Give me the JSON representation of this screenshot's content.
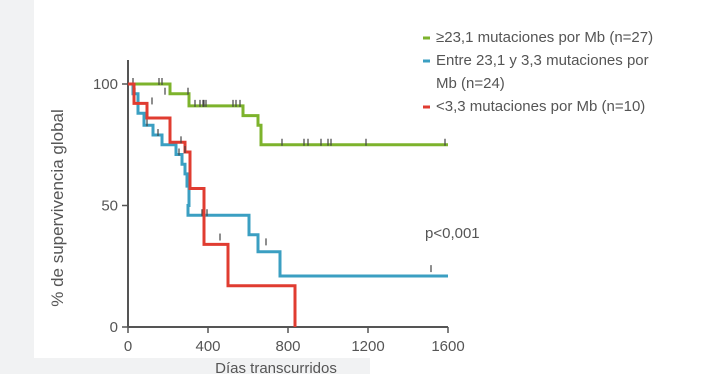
{
  "chart_data": {
    "type": "line",
    "step": true,
    "title": "",
    "xlabel": "Días transcurridos",
    "ylabel": "% de supervivencia global",
    "xlim": [
      0,
      1600
    ],
    "ylim": [
      0,
      100
    ],
    "xticks": [
      "0",
      "400",
      "800",
      "1200",
      "1600"
    ],
    "yticks": [
      "0",
      "50",
      "100"
    ],
    "legend_position": "top-right",
    "series": [
      {
        "name": "≥23,1 mutaciones por Mb (n=27)",
        "color": "#7db32c",
        "points": [
          [
            0,
            100
          ],
          [
            210,
            100
          ],
          [
            210,
            96
          ],
          [
            305,
            96
          ],
          [
            305,
            91
          ],
          [
            575,
            91
          ],
          [
            575,
            87
          ],
          [
            650,
            87
          ],
          [
            650,
            83
          ],
          [
            665,
            83
          ],
          [
            665,
            75
          ],
          [
            1600,
            75
          ]
        ],
        "censor": [
          [
            25,
            100
          ],
          [
            155,
            100
          ],
          [
            170,
            100
          ],
          [
            185,
            96
          ],
          [
            300,
            96
          ],
          [
            335,
            91
          ],
          [
            360,
            91
          ],
          [
            375,
            91
          ],
          [
            380,
            91
          ],
          [
            390,
            91
          ],
          [
            525,
            91
          ],
          [
            540,
            91
          ],
          [
            560,
            91
          ],
          [
            770,
            75
          ],
          [
            880,
            75
          ],
          [
            900,
            75
          ],
          [
            965,
            75
          ],
          [
            1000,
            75
          ],
          [
            1015,
            75
          ],
          [
            1190,
            75
          ],
          [
            1585,
            75
          ]
        ]
      },
      {
        "name": "Entre 23,1 y 3,3 mutaciones por Mb (n=24)",
        "color": "#3b9fc2",
        "points": [
          [
            0,
            100
          ],
          [
            25,
            100
          ],
          [
            25,
            96
          ],
          [
            50,
            96
          ],
          [
            50,
            88
          ],
          [
            80,
            88
          ],
          [
            80,
            83
          ],
          [
            125,
            83
          ],
          [
            125,
            79
          ],
          [
            170,
            79
          ],
          [
            170,
            75
          ],
          [
            240,
            75
          ],
          [
            240,
            71
          ],
          [
            270,
            71
          ],
          [
            270,
            67
          ],
          [
            285,
            67
          ],
          [
            285,
            63
          ],
          [
            295,
            63
          ],
          [
            295,
            58
          ],
          [
            305,
            58
          ],
          [
            305,
            50
          ],
          [
            300,
            50
          ],
          [
            300,
            46
          ],
          [
            605,
            46
          ],
          [
            605,
            38
          ],
          [
            650,
            38
          ],
          [
            650,
            31
          ],
          [
            760,
            31
          ],
          [
            760,
            21
          ],
          [
            1600,
            21
          ]
        ],
        "censor": [
          [
            35,
            96
          ],
          [
            95,
            83
          ],
          [
            150,
            79
          ],
          [
            255,
            71
          ],
          [
            370,
            46
          ],
          [
            395,
            46
          ],
          [
            690,
            34
          ],
          [
            1515,
            23
          ]
        ]
      },
      {
        "name": "<3,3 mutaciones por Mb (n=10)",
        "color": "#e03c31",
        "points": [
          [
            0,
            100
          ],
          [
            30,
            100
          ],
          [
            30,
            92
          ],
          [
            95,
            92
          ],
          [
            95,
            86
          ],
          [
            210,
            86
          ],
          [
            210,
            76
          ],
          [
            285,
            76
          ],
          [
            285,
            72
          ],
          [
            310,
            72
          ],
          [
            310,
            57
          ],
          [
            380,
            57
          ],
          [
            380,
            34
          ],
          [
            500,
            34
          ],
          [
            500,
            17
          ],
          [
            835,
            17
          ],
          [
            835,
            0
          ]
        ],
        "censor": [
          [
            120,
            92
          ],
          [
            265,
            76
          ],
          [
            285,
            72
          ],
          [
            460,
            36
          ]
        ]
      }
    ],
    "annotations": [
      "p<0,001"
    ]
  }
}
